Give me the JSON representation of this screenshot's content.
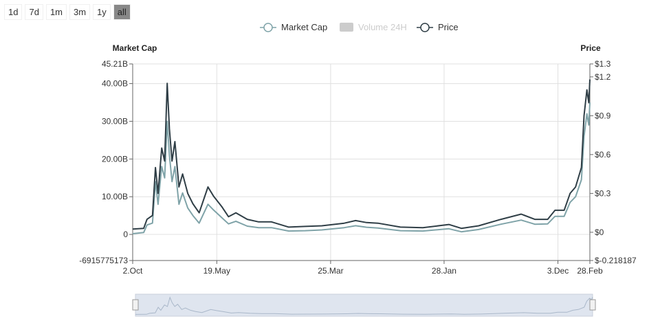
{
  "range_buttons": [
    {
      "label": "1d"
    },
    {
      "label": "7d"
    },
    {
      "label": "1m"
    },
    {
      "label": "3m"
    },
    {
      "label": "1y"
    },
    {
      "label": "all",
      "active": true
    }
  ],
  "chart_data": {
    "type": "line",
    "legend": {
      "placement": "top-center",
      "items": [
        {
          "name": "Market Cap",
          "color": "#7fa3a8",
          "visible": true
        },
        {
          "name": "Volume 24H",
          "color": "#cccccc",
          "visible": false
        },
        {
          "name": "Price",
          "color": "#2f3e46",
          "visible": true
        }
      ]
    },
    "yaxis_left": {
      "label": "Market Cap",
      "ticks": [
        "45.21B",
        "40.00B",
        "30.00B",
        "20.00B",
        "10.00B",
        "0",
        "-6915775173"
      ],
      "tick_values": [
        45.21,
        40,
        30,
        20,
        10,
        0,
        -6.915775173
      ],
      "range": [
        -6.915775173,
        45.21
      ],
      "unit": "B"
    },
    "yaxis_right": {
      "label": "Price",
      "ticks": [
        "$1.3",
        "$1.2",
        "$0.9",
        "$0.6",
        "$0.3",
        "$0",
        "$-0.218187"
      ],
      "tick_values": [
        1.3,
        1.2,
        0.9,
        0.6,
        0.3,
        0,
        -0.218187
      ],
      "range": [
        -0.218187,
        1.3
      ]
    },
    "xaxis": {
      "ticks": [
        "2.Oct",
        "19.May",
        "25.Mar",
        "28.Jan",
        "3.Dec",
        "28.Feb"
      ],
      "tick_dates": [
        "2017-10-02",
        "2018-05-19",
        "2019-03-25",
        "2020-01-28",
        "2020-12-03",
        "2021-02-28"
      ],
      "range": [
        "2017-10-02",
        "2021-02-28"
      ]
    },
    "grid": true,
    "series": [
      {
        "name": "Price",
        "color": "#2f3e46",
        "axis": "right",
        "points": [
          [
            "2017-10-02",
            0.025
          ],
          [
            "2017-11-01",
            0.03
          ],
          [
            "2017-11-10",
            0.1
          ],
          [
            "2017-11-25",
            0.13
          ],
          [
            "2017-12-03",
            0.5
          ],
          [
            "2017-12-10",
            0.3
          ],
          [
            "2017-12-20",
            0.65
          ],
          [
            "2017-12-28",
            0.55
          ],
          [
            "2018-01-04",
            1.15
          ],
          [
            "2018-01-10",
            0.8
          ],
          [
            "2018-01-17",
            0.55
          ],
          [
            "2018-01-25",
            0.7
          ],
          [
            "2018-02-05",
            0.35
          ],
          [
            "2018-02-15",
            0.45
          ],
          [
            "2018-03-01",
            0.3
          ],
          [
            "2018-03-15",
            0.22
          ],
          [
            "2018-04-01",
            0.15
          ],
          [
            "2018-04-25",
            0.35
          ],
          [
            "2018-05-10",
            0.28
          ],
          [
            "2018-06-01",
            0.2
          ],
          [
            "2018-06-20",
            0.12
          ],
          [
            "2018-07-10",
            0.15
          ],
          [
            "2018-08-10",
            0.1
          ],
          [
            "2018-09-10",
            0.08
          ],
          [
            "2018-10-15",
            0.08
          ],
          [
            "2018-12-01",
            0.04
          ],
          [
            "2019-01-15",
            0.045
          ],
          [
            "2019-03-01",
            0.05
          ],
          [
            "2019-05-01",
            0.07
          ],
          [
            "2019-06-01",
            0.09
          ],
          [
            "2019-07-01",
            0.075
          ],
          [
            "2019-08-01",
            0.07
          ],
          [
            "2019-10-01",
            0.04
          ],
          [
            "2019-12-01",
            0.035
          ],
          [
            "2020-02-10",
            0.06
          ],
          [
            "2020-03-15",
            0.03
          ],
          [
            "2020-05-01",
            0.05
          ],
          [
            "2020-07-01",
            0.1
          ],
          [
            "2020-08-25",
            0.14
          ],
          [
            "2020-10-01",
            0.1
          ],
          [
            "2020-11-05",
            0.1
          ],
          [
            "2020-11-25",
            0.17
          ],
          [
            "2020-12-20",
            0.17
          ],
          [
            "2021-01-05",
            0.3
          ],
          [
            "2021-01-20",
            0.35
          ],
          [
            "2021-02-05",
            0.5
          ],
          [
            "2021-02-12",
            0.9
          ],
          [
            "2021-02-20",
            1.1
          ],
          [
            "2021-02-25",
            1.0
          ],
          [
            "2021-02-28",
            1.18
          ]
        ]
      },
      {
        "name": "Market Cap",
        "color": "#7fa3a8",
        "axis": "left",
        "points": [
          [
            "2017-10-02",
            0.2
          ],
          [
            "2017-11-01",
            0.5
          ],
          [
            "2017-11-10",
            2.5
          ],
          [
            "2017-11-25",
            3
          ],
          [
            "2017-12-03",
            14
          ],
          [
            "2017-12-10",
            8
          ],
          [
            "2017-12-20",
            18
          ],
          [
            "2017-12-28",
            15
          ],
          [
            "2018-01-04",
            30
          ],
          [
            "2018-01-10",
            21
          ],
          [
            "2018-01-17",
            14
          ],
          [
            "2018-01-25",
            18
          ],
          [
            "2018-02-05",
            8
          ],
          [
            "2018-02-15",
            11
          ],
          [
            "2018-03-01",
            7
          ],
          [
            "2018-03-15",
            5
          ],
          [
            "2018-04-01",
            3
          ],
          [
            "2018-04-25",
            8
          ],
          [
            "2018-05-10",
            6.5
          ],
          [
            "2018-06-01",
            4.5
          ],
          [
            "2018-06-20",
            2.8
          ],
          [
            "2018-07-10",
            3.5
          ],
          [
            "2018-08-10",
            2.2
          ],
          [
            "2018-09-10",
            1.8
          ],
          [
            "2018-10-15",
            1.8
          ],
          [
            "2018-12-01",
            0.9
          ],
          [
            "2019-01-15",
            1
          ],
          [
            "2019-03-01",
            1.2
          ],
          [
            "2019-05-01",
            1.8
          ],
          [
            "2019-06-01",
            2.3
          ],
          [
            "2019-07-01",
            1.9
          ],
          [
            "2019-08-01",
            1.7
          ],
          [
            "2019-10-01",
            1
          ],
          [
            "2019-12-01",
            0.9
          ],
          [
            "2020-02-10",
            1.5
          ],
          [
            "2020-03-15",
            0.7
          ],
          [
            "2020-05-01",
            1.3
          ],
          [
            "2020-07-01",
            2.7
          ],
          [
            "2020-08-25",
            3.8
          ],
          [
            "2020-10-01",
            2.7
          ],
          [
            "2020-11-05",
            2.8
          ],
          [
            "2020-11-25",
            4.8
          ],
          [
            "2020-12-20",
            4.8
          ],
          [
            "2021-01-05",
            8.5
          ],
          [
            "2021-01-20",
            10
          ],
          [
            "2021-02-05",
            14.5
          ],
          [
            "2021-02-12",
            26
          ],
          [
            "2021-02-20",
            32
          ],
          [
            "2021-02-25",
            29
          ],
          [
            "2021-02-28",
            35
          ]
        ]
      }
    ]
  }
}
